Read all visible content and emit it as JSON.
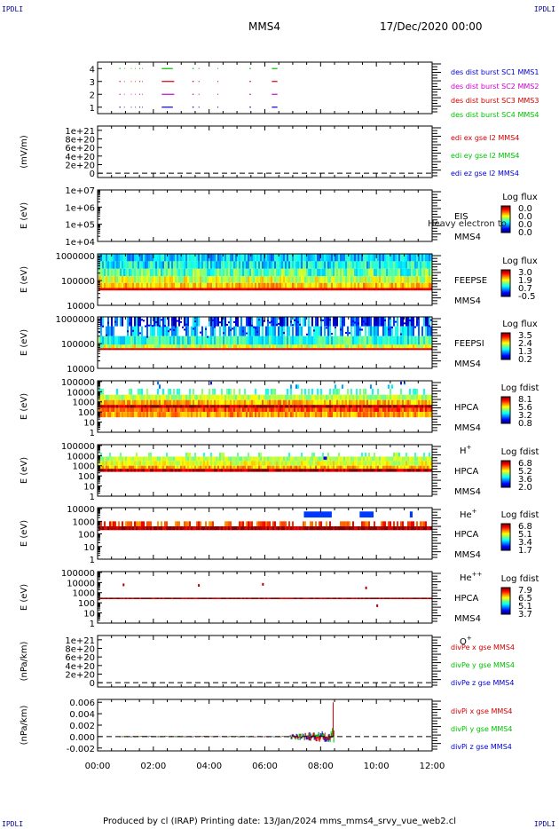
{
  "page": {
    "corner_label": "IPDLI",
    "spacecraft": "MMS4",
    "date": "17/Dec/2020 00:00",
    "footer": "Produced by cl (IRAP)   Printing date: 13/Jan/2024   mms_mms4_srvy_vue_web2.cl"
  },
  "chart_data": [
    {
      "id": "burst",
      "type": "scatter",
      "ylabel": "",
      "ylim": [
        0.5,
        4.5
      ],
      "yticks": [
        "1",
        "2",
        "3",
        "4"
      ],
      "legend": [
        {
          "text": "des dist burst SC1 MMS1",
          "color": "#0000d0"
        },
        {
          "text": "des dist burst SC2 MMS2",
          "color": "#d000d0"
        },
        {
          "text": "des dist burst SC3 MMS3",
          "color": "#d00000"
        },
        {
          "text": "des dist burst SC4 MMS4",
          "color": "#00c000"
        }
      ],
      "series": [
        {
          "y": 1,
          "color": "#0000d0",
          "intervals": [
            [
              0.78,
              0.82
            ],
            [
              0.95,
              0.97
            ],
            [
              1.2,
              1.22
            ],
            [
              1.35,
              1.37
            ],
            [
              1.5,
              1.53
            ],
            [
              1.6,
              1.62
            ],
            [
              2.3,
              2.7
            ],
            [
              3.4,
              3.45
            ],
            [
              3.62,
              3.65
            ],
            [
              4.3,
              4.33
            ],
            [
              5.45,
              5.5
            ],
            [
              6.25,
              6.45
            ]
          ]
        },
        {
          "y": 2,
          "color": "#d000d0",
          "intervals": [
            [
              0.78,
              0.82
            ],
            [
              0.95,
              0.97
            ],
            [
              1.2,
              1.22
            ],
            [
              1.35,
              1.37
            ],
            [
              1.5,
              1.53
            ],
            [
              1.6,
              1.62
            ],
            [
              2.3,
              2.75
            ],
            [
              3.4,
              3.45
            ],
            [
              3.62,
              3.65
            ],
            [
              4.3,
              4.33
            ],
            [
              5.45,
              5.5
            ],
            [
              6.25,
              6.45
            ]
          ]
        },
        {
          "y": 3,
          "color": "#d00000",
          "intervals": [
            [
              0.78,
              0.82
            ],
            [
              0.95,
              0.97
            ],
            [
              1.2,
              1.22
            ],
            [
              1.35,
              1.37
            ],
            [
              1.5,
              1.53
            ],
            [
              1.6,
              1.62
            ],
            [
              2.3,
              2.75
            ],
            [
              3.4,
              3.45
            ],
            [
              3.62,
              3.65
            ],
            [
              4.3,
              4.33
            ],
            [
              5.45,
              5.5
            ],
            [
              6.25,
              6.45
            ]
          ]
        },
        {
          "y": 4,
          "color": "#00c000",
          "intervals": [
            [
              0.78,
              0.82
            ],
            [
              0.95,
              0.97
            ],
            [
              1.2,
              1.22
            ],
            [
              1.35,
              1.37
            ],
            [
              1.5,
              1.53
            ],
            [
              1.6,
              1.62
            ],
            [
              2.3,
              2.7
            ],
            [
              3.4,
              3.45
            ],
            [
              3.62,
              3.65
            ],
            [
              4.3,
              4.33
            ],
            [
              5.45,
              5.5
            ],
            [
              6.25,
              6.45
            ]
          ]
        }
      ]
    },
    {
      "id": "edi",
      "type": "line",
      "ylabel": "(mV/m)",
      "ylim": [
        -1e+20,
        1.1e+21
      ],
      "yticks": [
        "0",
        "2e+20",
        "4e+20",
        "6e+20",
        "8e+20",
        "1e+21"
      ],
      "ytick_values": [
        0,
        2e+20,
        4e+20,
        6e+20,
        8e+20,
        1e+21
      ],
      "zero_line": true,
      "legend": [
        {
          "text": "edi ex gse l2 MMS4",
          "color": "#d00000"
        },
        {
          "text": "edi ey gse l2 MMS4",
          "color": "#00c000"
        },
        {
          "text": "edi ez gse l2 MMS4",
          "color": "#0000d0"
        }
      ]
    },
    {
      "id": "eis",
      "type": "heatmap",
      "spectro": "empty",
      "ylabel": "E (eV)",
      "ylog": true,
      "yticks": [
        "1e+04",
        "1e+05",
        "1e+06",
        "1e+07"
      ],
      "ytick_values": [
        10000.0,
        100000.0,
        1000000.0,
        10000000.0
      ],
      "ylim": [
        10000.0,
        10000000.0
      ],
      "inst": "EIS",
      "sc": "MMS4",
      "overlay": "Heavy electron to",
      "cbar": {
        "title": "Log flux",
        "ticks": [
          "0.0",
          "0.0",
          "0.0",
          "0.0"
        ]
      }
    },
    {
      "id": "feepse",
      "type": "heatmap",
      "spectro": "feepse",
      "ylabel": "E (eV)",
      "ylog": true,
      "yticks": [
        "10000",
        "100000",
        "1000000"
      ],
      "ytick_values": [
        10000.0,
        100000.0,
        1000000.0
      ],
      "ylim": [
        10000.0,
        1200000.0
      ],
      "inst": "FEEPSE",
      "sc": "MMS4",
      "cbar": {
        "title": "Log flux",
        "ticks": [
          "3.0",
          "1.9",
          "0.7",
          "-0.5"
        ]
      }
    },
    {
      "id": "feepsi",
      "type": "heatmap",
      "spectro": "feepsi",
      "ylabel": "E (eV)",
      "ylog": true,
      "yticks": [
        "10000",
        "100000",
        "1000000"
      ],
      "ytick_values": [
        10000.0,
        100000.0,
        1000000.0
      ],
      "ylim": [
        10000.0,
        1200000.0
      ],
      "inst": "FEEPSI",
      "sc": "MMS4",
      "cbar": {
        "title": "Log flux",
        "ticks": [
          "3.5",
          "2.4",
          "1.3",
          "0.2"
        ]
      }
    },
    {
      "id": "hpca_h",
      "type": "heatmap",
      "spectro": "hpca_h",
      "ylabel": "E (eV)",
      "ylog": true,
      "yticks": [
        "1",
        "10",
        "100",
        "1000",
        "10000",
        "100000"
      ],
      "ytick_values": [
        1,
        10,
        100,
        1000,
        10000,
        100000
      ],
      "ylim": [
        1,
        120000.0
      ],
      "inst": "HPCA",
      "sc": "MMS4",
      "ion": "H",
      "ion_sup": "+",
      "cbar": {
        "title": "Log fdist",
        "ticks": [
          "8.1",
          "5.6",
          "3.2",
          "0.8"
        ]
      }
    },
    {
      "id": "hpca_he",
      "type": "heatmap",
      "spectro": "hpca_he",
      "ylabel": "E (eV)",
      "ylog": true,
      "yticks": [
        "1",
        "10",
        "100",
        "1000",
        "10000",
        "100000"
      ],
      "ytick_values": [
        1,
        10,
        100,
        1000,
        10000,
        100000
      ],
      "ylim": [
        1,
        120000.0
      ],
      "inst": "HPCA",
      "sc": "MMS4",
      "ion": "He",
      "ion_sup": "+",
      "cbar": {
        "title": "Log fdist",
        "ticks": [
          "6.8",
          "5.2",
          "3.6",
          "2.0"
        ]
      }
    },
    {
      "id": "hpca_hepp",
      "type": "heatmap",
      "spectro": "hpca_hepp",
      "ylabel": "E (eV)",
      "ylog": true,
      "yticks": [
        "1",
        "10",
        "100",
        "1000",
        "10000"
      ],
      "ytick_values": [
        1,
        10,
        100,
        1000,
        10000
      ],
      "ylim": [
        1,
        12000.0
      ],
      "inst": "HPCA",
      "sc": "MMS4",
      "ion": "He",
      "ion_sup": "++",
      "cbar": {
        "title": "Log fdist",
        "ticks": [
          "6.8",
          "5.1",
          "3.4",
          "1.7"
        ]
      }
    },
    {
      "id": "hpca_o",
      "type": "heatmap",
      "spectro": "hpca_o",
      "ylabel": "E (eV)",
      "ylog": true,
      "yticks": [
        "1",
        "10",
        "100",
        "1000",
        "10000",
        "100000"
      ],
      "ytick_values": [
        1,
        10,
        100,
        1000,
        10000,
        100000
      ],
      "ylim": [
        1,
        120000.0
      ],
      "inst": "HPCA",
      "sc": "MMS4",
      "ion": "O",
      "ion_sup": "+",
      "cbar": {
        "title": "Log fdist",
        "ticks": [
          "7.9",
          "6.5",
          "5.1",
          "3.7"
        ]
      }
    },
    {
      "id": "divpe",
      "type": "line",
      "ylabel": "(nPa/km)",
      "ylim": [
        -1e+20,
        1.1e+21
      ],
      "yticks": [
        "0",
        "2e+20",
        "4e+20",
        "6e+20",
        "8e+20",
        "1e+21"
      ],
      "ytick_values": [
        0,
        2e+20,
        4e+20,
        6e+20,
        8e+20,
        1e+21
      ],
      "zero_line": true,
      "legend": [
        {
          "text": "divPe x gse MMS4",
          "color": "#d00000"
        },
        {
          "text": "divPe y gse MMS4",
          "color": "#00c000"
        },
        {
          "text": "divPe z gse MMS4",
          "color": "#0000d0"
        }
      ]
    },
    {
      "id": "divpi",
      "type": "line",
      "ylabel": "(nPa/km)",
      "ylim": [
        -0.0025,
        0.0065
      ],
      "yticks": [
        "-0.002",
        "0.000",
        "0.002",
        "0.004",
        "0.006"
      ],
      "ytick_values": [
        -0.002,
        0,
        0.002,
        0.004,
        0.006
      ],
      "zero_line": true,
      "legend": [
        {
          "text": "divPi x gse MMS4",
          "color": "#d00000"
        },
        {
          "text": "divPi y gse MMS4",
          "color": "#00c000"
        },
        {
          "text": "divPi z gse MMS4",
          "color": "#0000d0"
        }
      ],
      "data_span_hours": [
        0.8,
        8.5
      ],
      "spike": {
        "x": 8.45,
        "y": 0.006
      }
    }
  ],
  "x_axis": {
    "range_hours": [
      0,
      12
    ],
    "tick_labels": [
      "00:00",
      "02:00",
      "04:00",
      "06:00",
      "08:00",
      "10:00",
      "12:00"
    ],
    "tick_values": [
      0,
      2,
      4,
      6,
      8,
      10,
      12
    ]
  }
}
